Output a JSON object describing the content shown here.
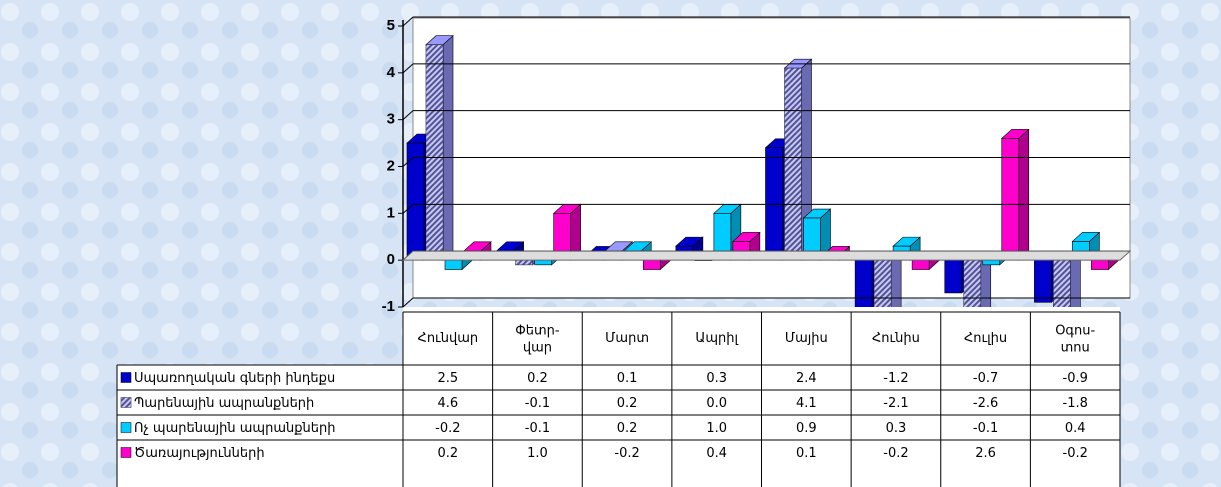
{
  "chart_data": {
    "type": "bar3d",
    "categories": [
      "Հունվար",
      "Փետր-\nվար",
      "Մարտ",
      "Ապրիլ",
      "Մայիս",
      "Հունիս",
      "Հուլիս",
      "Օգոս-\nտոս"
    ],
    "ylim": [
      -1,
      5
    ],
    "yticks": [
      -1,
      0,
      1,
      2,
      3,
      4,
      5
    ],
    "grid": true,
    "series": [
      {
        "name": "Սպառողական գների ինդեքս",
        "color": "#0000cc",
        "values": [
          2.5,
          0.2,
          0.1,
          0.3,
          2.4,
          -1.2,
          -0.7,
          -0.9
        ],
        "value_labels": [
          "2.5",
          "0.2",
          "0.1",
          "0.3",
          "2.4",
          "-1.2",
          "-0.7",
          "-0.9"
        ]
      },
      {
        "name": "Պարենային ապրանքների",
        "color": "#9999ff",
        "pattern": "hatch",
        "values": [
          4.6,
          -0.1,
          0.2,
          0.0,
          4.1,
          -2.1,
          -2.6,
          -1.8
        ],
        "value_labels": [
          "4.6",
          "-0.1",
          "0.2",
          "0.0",
          "4.1",
          "-2.1",
          "-2.6",
          "-1.8"
        ]
      },
      {
        "name": "Ոչ պարենային  ապրանքների",
        "color": "#00ccff",
        "values": [
          -0.2,
          -0.1,
          0.2,
          1.0,
          0.9,
          0.3,
          -0.1,
          0.4
        ],
        "value_labels": [
          "-0.2",
          "-0.1",
          "0.2",
          "1.0",
          "0.9",
          "0.3",
          "-0.1",
          "0.4"
        ]
      },
      {
        "name": "Ծառայությունների",
        "color": "#ff00cc",
        "values": [
          0.2,
          1.0,
          -0.2,
          0.4,
          0.1,
          -0.2,
          2.6,
          -0.2
        ],
        "value_labels": [
          "0.2",
          "1.0",
          "-0.2",
          "0.4",
          "0.1",
          "-0.2",
          "2.6",
          "-0.2"
        ]
      }
    ]
  }
}
